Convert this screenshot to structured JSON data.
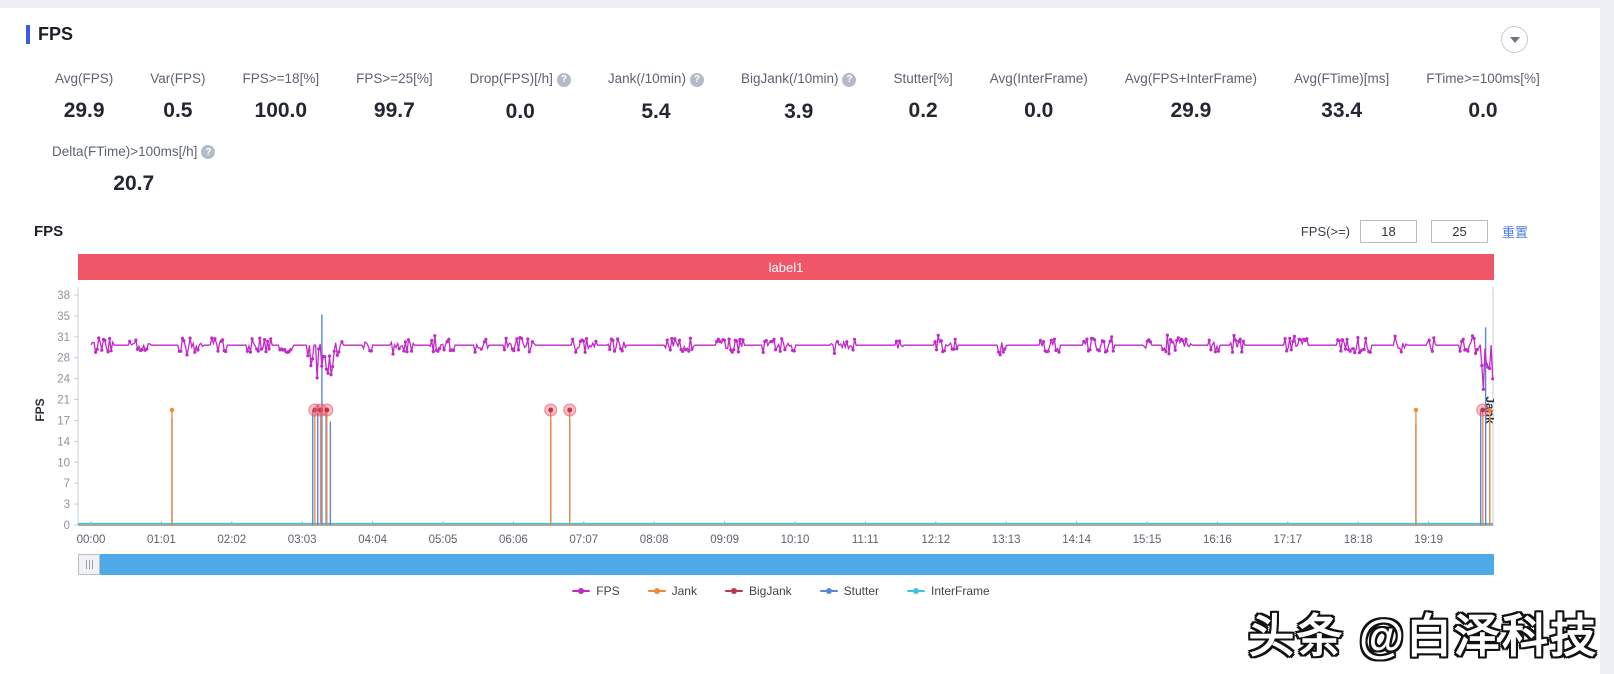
{
  "page": {
    "title": "FPS"
  },
  "metrics": [
    {
      "label": "Avg(FPS)",
      "value": "29.9",
      "help": false
    },
    {
      "label": "Var(FPS)",
      "value": "0.5",
      "help": false
    },
    {
      "label": "FPS>=18[%]",
      "value": "100.0",
      "help": false
    },
    {
      "label": "FPS>=25[%]",
      "value": "99.7",
      "help": false
    },
    {
      "label": "Drop(FPS)[/h]",
      "value": "0.0",
      "help": true
    },
    {
      "label": "Jank(/10min)",
      "value": "5.4",
      "help": true
    },
    {
      "label": "BigJank(/10min)",
      "value": "3.9",
      "help": true
    },
    {
      "label": "Stutter[%]",
      "value": "0.2",
      "help": false
    },
    {
      "label": "Avg(InterFrame)",
      "value": "0.0",
      "help": false
    },
    {
      "label": "Avg(FPS+InterFrame)",
      "value": "29.9",
      "help": false
    },
    {
      "label": "Avg(FTime)[ms]",
      "value": "33.4",
      "help": false
    },
    {
      "label": "FTime>=100ms[%]",
      "value": "0.0",
      "help": false
    }
  ],
  "metrics_row2": [
    {
      "label": "Delta(FTime)>100ms[/h]",
      "value": "20.7",
      "help": true
    }
  ],
  "chart_section": {
    "title": "FPS",
    "filter_label": "FPS(>=)",
    "filter_inputs": [
      "18",
      "25"
    ],
    "reset_label": "重置",
    "banner": {
      "label": "label1",
      "color": "#ef5667"
    }
  },
  "chart_data": {
    "type": "line",
    "title": "FPS",
    "x_ticks": [
      "00:00",
      "01:01",
      "02:02",
      "03:03",
      "04:04",
      "05:05",
      "06:06",
      "07:07",
      "08:08",
      "09:09",
      "10:10",
      "11:11",
      "12:12",
      "13:13",
      "14:14",
      "15:15",
      "16:16",
      "17:17",
      "18:18",
      "19:19"
    ],
    "t_max": 19.91,
    "left_axis": {
      "label": "FPS",
      "ticks": [
        "0",
        "3",
        "7",
        "10",
        "14",
        "17",
        "21",
        "24",
        "28",
        "31",
        "35",
        "38"
      ],
      "max": 38
    },
    "right_axis": {
      "label": "Jank",
      "ticks": [
        "0",
        "1",
        "2"
      ],
      "max": 2
    },
    "fps": {
      "baseline": 29.7,
      "noise": 1.2,
      "dips": [
        {
          "center": 3.27,
          "width": 0.2,
          "min": 24
        },
        {
          "center": 19.8,
          "width": 0.15,
          "min": 22
        }
      ]
    },
    "jank_events": [
      1.15,
      3.18,
      3.26,
      3.35,
      6.53,
      6.8,
      18.82,
      19.77,
      19.87
    ],
    "bigjank_events": [
      3.18,
      3.26,
      3.35,
      6.53,
      6.8,
      19.77
    ],
    "stutter_spikes": [
      {
        "t": 1.15,
        "v": 0.93
      },
      {
        "t": 3.15,
        "v": 1.0
      },
      {
        "t": 3.22,
        "v": 1.05
      },
      {
        "t": 3.28,
        "v": 1.83
      },
      {
        "t": 3.34,
        "v": 1.0
      },
      {
        "t": 3.4,
        "v": 0.9
      },
      {
        "t": 6.53,
        "v": 0.92
      },
      {
        "t": 6.8,
        "v": 0.92
      },
      {
        "t": 18.82,
        "v": 0.88
      },
      {
        "t": 19.74,
        "v": 1.0
      },
      {
        "t": 19.81,
        "v": 1.72
      },
      {
        "t": 19.87,
        "v": 0.95
      }
    ],
    "colors": {
      "fps": "#c02ac7",
      "jank": "#ef8a36",
      "bigjank": "#b8394e",
      "stutter": "#5b87d9",
      "interframe": "#3fc1e0",
      "bigjank_halo": "#ee5a6e"
    }
  },
  "legend": [
    {
      "name": "FPS",
      "color": "#c02ac7"
    },
    {
      "name": "Jank",
      "color": "#ef8a36"
    },
    {
      "name": "BigJank",
      "color": "#b8394e"
    },
    {
      "name": "Stutter",
      "color": "#5b87d9"
    },
    {
      "name": "InterFrame",
      "color": "#3fc1e0"
    }
  ],
  "watermark": "头条 @白泽科技"
}
